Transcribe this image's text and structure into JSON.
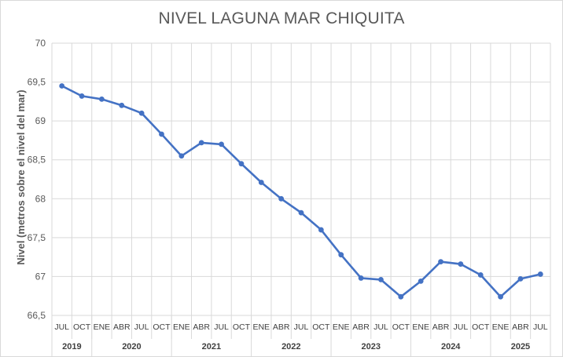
{
  "chart_data": {
    "type": "line",
    "title": "NIVEL LAGUNA MAR CHIQUITA",
    "ylabel": "Nivel (metros sobre el nivel del mar)",
    "xlabel": "",
    "ylim": [
      66.5,
      70
    ],
    "yticks": [
      "66,5",
      "67",
      "67,5",
      "68",
      "68,5",
      "69",
      "69,5",
      "70"
    ],
    "ytick_values": [
      66.5,
      67,
      67.5,
      68,
      68.5,
      69,
      69.5,
      70
    ],
    "grid": true,
    "line_color": "#4472c4",
    "categories": [
      "JUL",
      "OCT",
      "ENE",
      "ABR",
      "JUL",
      "OCT",
      "ENE",
      "ABR",
      "JUL",
      "OCT",
      "ENE",
      "ABR",
      "JUL",
      "OCT",
      "ENE",
      "ABR",
      "JUL",
      "OCT",
      "ENE",
      "ABR",
      "JUL",
      "OCT",
      "ENE",
      "ABR",
      "JUL"
    ],
    "years": [
      {
        "label": "2019",
        "count": 2
      },
      {
        "label": "2020",
        "count": 4
      },
      {
        "label": "2021",
        "count": 4
      },
      {
        "label": "2022",
        "count": 4
      },
      {
        "label": "2023",
        "count": 4
      },
      {
        "label": "2024",
        "count": 4
      },
      {
        "label": "2025",
        "count": 3
      }
    ],
    "series": [
      {
        "values": [
          69.45,
          69.32,
          69.28,
          69.2,
          69.1,
          68.83,
          68.55,
          68.72,
          68.7,
          68.45,
          68.21,
          68.0,
          67.82,
          67.6,
          67.28,
          66.98,
          66.96,
          66.74,
          66.94,
          67.19,
          67.16,
          67.02,
          66.74,
          66.97,
          67.03
        ]
      }
    ]
  }
}
